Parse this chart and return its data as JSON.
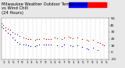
{
  "title": "Milwaukee Weather Outdoor Temperature\nvs Wind Chill\n(24 Hours)",
  "title_fontsize": 3.8,
  "bg_color": "#e8e8e8",
  "plot_bg": "#ffffff",
  "temp_color": "#cc0000",
  "windchill_color": "#0000cc",
  "ylim": [
    -10,
    50
  ],
  "xlim": [
    0,
    24
  ],
  "ytick_vals": [
    -10,
    0,
    10,
    20,
    30,
    40,
    50
  ],
  "ytick_labels": [
    "-10",
    "0",
    "10",
    "20",
    "30",
    "40",
    "50"
  ],
  "xtick_labels": [
    "1",
    "3",
    "5",
    "7",
    "9",
    "1",
    "3",
    "5",
    "7",
    "9",
    "1",
    "3",
    "5",
    "7",
    "9",
    "1",
    "3",
    "5",
    "7",
    "9",
    "1",
    "3",
    "5"
  ],
  "temp_x": [
    0.0,
    0.5,
    1.0,
    1.5,
    2.0,
    2.5,
    3.0,
    3.5,
    4.0,
    5.0,
    5.5,
    6.0,
    6.5,
    7.5,
    8.0,
    8.5,
    9.5,
    10.0,
    10.5,
    11.0,
    12.0,
    12.5,
    13.5,
    14.0,
    15.0,
    15.5,
    16.0,
    17.0,
    18.0,
    19.0,
    19.5,
    20.5,
    21.5,
    22.0,
    22.5,
    23.0
  ],
  "temp_y": [
    42,
    40,
    37,
    35,
    33,
    30,
    28,
    26,
    24,
    22,
    21,
    20,
    19,
    18,
    19,
    20,
    21,
    20,
    19,
    20,
    22,
    21,
    20,
    22,
    23,
    22,
    21,
    22,
    20,
    18,
    17,
    18,
    15,
    14,
    12,
    10
  ],
  "wc_x": [
    0.0,
    0.5,
    1.0,
    1.5,
    2.0,
    2.5,
    3.0,
    3.5,
    4.0,
    5.0,
    5.5,
    6.0,
    6.5,
    7.5,
    8.0,
    8.5,
    9.5,
    10.0,
    10.5,
    11.0,
    12.5,
    13.5,
    14.0,
    15.5,
    16.0,
    17.0,
    18.0,
    19.0,
    19.5,
    20.5,
    21.5
  ],
  "wc_y": [
    38,
    36,
    32,
    29,
    26,
    22,
    18,
    15,
    13,
    12,
    11,
    10,
    9,
    9,
    10,
    11,
    12,
    12,
    11,
    12,
    10,
    9,
    11,
    10,
    9,
    10,
    8,
    6,
    5,
    7,
    3
  ],
  "grid_x": [
    1,
    2,
    3,
    4,
    5,
    6,
    7,
    8,
    9,
    10,
    11,
    12,
    13,
    14,
    15,
    16,
    17,
    18,
    19,
    20,
    21,
    22,
    23
  ],
  "ylabel_fontsize": 3.2,
  "xlabel_fontsize": 3.0,
  "legend_blue_color": "#0000ff",
  "legend_red_color": "#ff0000"
}
